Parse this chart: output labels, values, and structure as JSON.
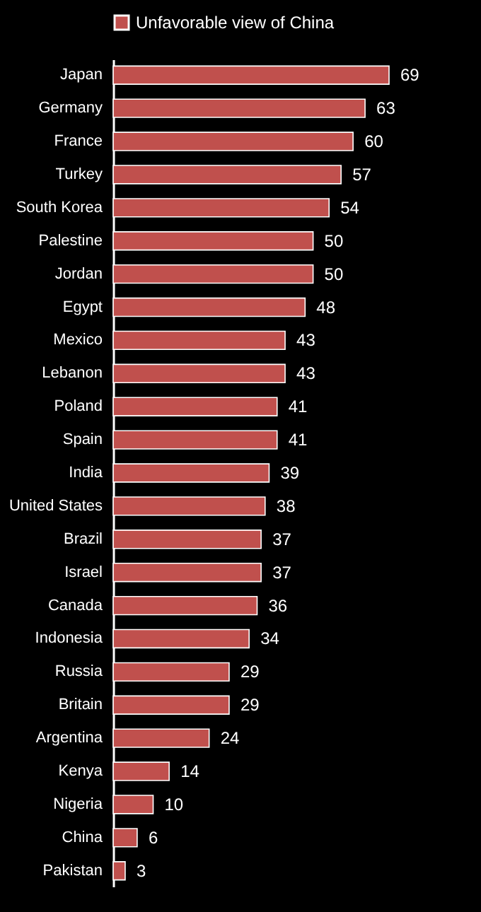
{
  "chart_data": {
    "type": "bar",
    "orientation": "horizontal",
    "categories": [
      "Japan",
      "Germany",
      "France",
      "Turkey",
      "South Korea",
      "Palestine",
      "Jordan",
      "Egypt",
      "Mexico",
      "Lebanon",
      "Poland",
      "Spain",
      "India",
      "United States",
      "Brazil",
      "Israel",
      "Canada",
      "Indonesia",
      "Russia",
      "Britain",
      "Argentina",
      "Kenya",
      "Nigeria",
      "China",
      "Pakistan"
    ],
    "series": [
      {
        "name": "Unfavorable view of China",
        "color": "#c0504d",
        "values": [
          69,
          63,
          60,
          57,
          54,
          50,
          50,
          48,
          43,
          43,
          41,
          41,
          39,
          38,
          37,
          37,
          36,
          34,
          29,
          29,
          24,
          14,
          10,
          6,
          3
        ]
      }
    ],
    "data_labels": true,
    "legend": "top",
    "grid": false
  }
}
